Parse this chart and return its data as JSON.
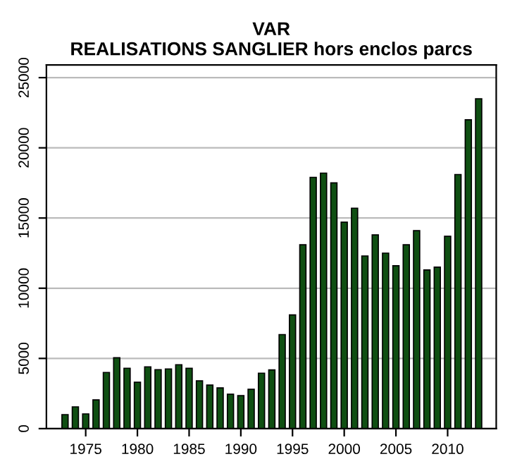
{
  "chart_data": {
    "type": "bar",
    "title": "VAR\nREALISATIONS SANGLIER hors enclos parcs",
    "x": [
      1973,
      1974,
      1975,
      1976,
      1977,
      1978,
      1979,
      1980,
      1981,
      1982,
      1983,
      1984,
      1985,
      1986,
      1987,
      1988,
      1989,
      1990,
      1991,
      1992,
      1993,
      1994,
      1995,
      1996,
      1997,
      1998,
      1999,
      2000,
      2001,
      2002,
      2003,
      2004,
      2005,
      2006,
      2007,
      2008,
      2009,
      2010,
      2011,
      2012,
      2013
    ],
    "values": [
      1000,
      1550,
      1050,
      2050,
      4000,
      5050,
      4300,
      3300,
      4400,
      4200,
      4250,
      4550,
      4300,
      3400,
      3100,
      2900,
      2450,
      2350,
      2800,
      3950,
      4180,
      6700,
      8100,
      13100,
      17900,
      18200,
      17500,
      14700,
      15700,
      12300,
      13800,
      12500,
      11600,
      13100,
      14100,
      11300,
      11500,
      13700,
      18100,
      22000,
      23500
    ],
    "color": "#0f4f12",
    "xlim": [
      1971.2,
      2014.7
    ],
    "xticks": [
      1975,
      1980,
      1985,
      1990,
      1995,
      2000,
      2005,
      2010
    ],
    "ylim": [
      0,
      25900
    ],
    "yticks": [
      0,
      5000,
      10000,
      15000,
      20000,
      25000
    ],
    "grid": "y"
  }
}
